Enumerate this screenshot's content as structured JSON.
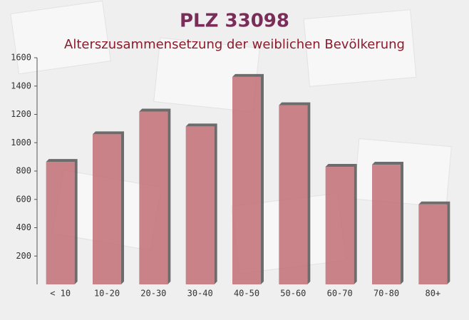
{
  "chart_data": {
    "type": "bar",
    "title": "PLZ 33098",
    "subtitle": "Alterszusammensetzung der weiblichen Bevölkerung",
    "categories": [
      "< 10",
      "10-20",
      "20-30",
      "30-40",
      "40-50",
      "50-60",
      "60-70",
      "70-80",
      "80+"
    ],
    "values": [
      865,
      1060,
      1220,
      1115,
      1465,
      1265,
      830,
      845,
      565
    ],
    "color": "#c26f76",
    "ylim": [
      0,
      1600
    ],
    "yticks": [
      200,
      400,
      600,
      800,
      1000,
      1200,
      1400,
      1600
    ]
  }
}
